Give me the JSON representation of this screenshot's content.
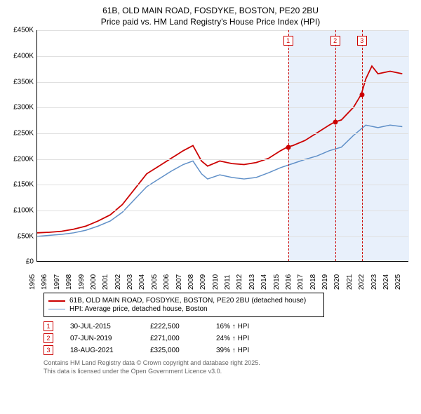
{
  "title_line1": "61B, OLD MAIN ROAD, FOSDYKE, BOSTON, PE20 2BU",
  "title_line2": "Price paid vs. HM Land Registry's House Price Index (HPI)",
  "chart": {
    "type": "line",
    "background_color": "#ffffff",
    "grid_color": "#e0e0e0",
    "shade_color": "#e8f0fb",
    "ylim": [
      0,
      450000
    ],
    "ytick_step": 50000,
    "ytick_labels": [
      "£0",
      "£50K",
      "£100K",
      "£150K",
      "£200K",
      "£250K",
      "£300K",
      "£350K",
      "£400K",
      "£450K"
    ],
    "xlim": [
      1995,
      2025.5
    ],
    "xtick_years": [
      1995,
      1996,
      1997,
      1998,
      1999,
      2000,
      2001,
      2002,
      2003,
      2004,
      2005,
      2006,
      2007,
      2008,
      2009,
      2010,
      2011,
      2012,
      2013,
      2014,
      2015,
      2016,
      2017,
      2018,
      2019,
      2020,
      2021,
      2022,
      2023,
      2024,
      2025
    ],
    "series": [
      {
        "name": "price_paid",
        "color": "#cc0000",
        "line_width": 1.8,
        "data": [
          [
            1995,
            55000
          ],
          [
            1996,
            56000
          ],
          [
            1997,
            58000
          ],
          [
            1998,
            62000
          ],
          [
            1999,
            68000
          ],
          [
            2000,
            78000
          ],
          [
            2001,
            90000
          ],
          [
            2002,
            110000
          ],
          [
            2003,
            140000
          ],
          [
            2004,
            170000
          ],
          [
            2005,
            185000
          ],
          [
            2006,
            200000
          ],
          [
            2007,
            215000
          ],
          [
            2007.8,
            225000
          ],
          [
            2008.5,
            195000
          ],
          [
            2009,
            185000
          ],
          [
            2010,
            195000
          ],
          [
            2011,
            190000
          ],
          [
            2012,
            188000
          ],
          [
            2013,
            192000
          ],
          [
            2014,
            200000
          ],
          [
            2015,
            215000
          ],
          [
            2015.58,
            222500
          ],
          [
            2016,
            225000
          ],
          [
            2017,
            235000
          ],
          [
            2018,
            250000
          ],
          [
            2019,
            265000
          ],
          [
            2019.44,
            271000
          ],
          [
            2020,
            275000
          ],
          [
            2021,
            300000
          ],
          [
            2021.63,
            325000
          ],
          [
            2022,
            355000
          ],
          [
            2022.5,
            380000
          ],
          [
            2023,
            365000
          ],
          [
            2024,
            370000
          ],
          [
            2025,
            365000
          ]
        ]
      },
      {
        "name": "hpi",
        "color": "#6090c8",
        "line_width": 1.5,
        "data": [
          [
            1995,
            48000
          ],
          [
            1996,
            50000
          ],
          [
            1997,
            52000
          ],
          [
            1998,
            55000
          ],
          [
            1999,
            60000
          ],
          [
            2000,
            68000
          ],
          [
            2001,
            78000
          ],
          [
            2002,
            95000
          ],
          [
            2003,
            120000
          ],
          [
            2004,
            145000
          ],
          [
            2005,
            160000
          ],
          [
            2006,
            175000
          ],
          [
            2007,
            188000
          ],
          [
            2007.8,
            195000
          ],
          [
            2008.5,
            170000
          ],
          [
            2009,
            160000
          ],
          [
            2010,
            168000
          ],
          [
            2011,
            163000
          ],
          [
            2012,
            160000
          ],
          [
            2013,
            163000
          ],
          [
            2014,
            172000
          ],
          [
            2015,
            182000
          ],
          [
            2016,
            190000
          ],
          [
            2017,
            198000
          ],
          [
            2018,
            205000
          ],
          [
            2019,
            215000
          ],
          [
            2020,
            222000
          ],
          [
            2021,
            245000
          ],
          [
            2022,
            265000
          ],
          [
            2023,
            260000
          ],
          [
            2024,
            265000
          ],
          [
            2025,
            262000
          ]
        ]
      }
    ],
    "shaded_ranges": [
      [
        2015.58,
        2019.44
      ],
      [
        2019.44,
        2021.63
      ],
      [
        2021.63,
        2025.5
      ]
    ],
    "markers": [
      {
        "x": 2015.58,
        "y": 222500,
        "label": "1"
      },
      {
        "x": 2019.44,
        "y": 271000,
        "label": "2"
      },
      {
        "x": 2021.63,
        "y": 325000,
        "label": "3"
      }
    ],
    "marker_color": "#cc0000",
    "vline_color": "#cc0000"
  },
  "legend": {
    "items": [
      {
        "color": "#cc0000",
        "width": 2,
        "label": "61B, OLD MAIN ROAD, FOSDYKE, BOSTON, PE20 2BU (detached house)"
      },
      {
        "color": "#6090c8",
        "width": 1.5,
        "label": "HPI: Average price, detached house, Boston"
      }
    ]
  },
  "transactions": [
    {
      "id": "1",
      "date": "30-JUL-2015",
      "price": "£222,500",
      "pct": "16% ↑ HPI"
    },
    {
      "id": "2",
      "date": "07-JUN-2019",
      "price": "£271,000",
      "pct": "24% ↑ HPI"
    },
    {
      "id": "3",
      "date": "18-AUG-2021",
      "price": "£325,000",
      "pct": "39% ↑ HPI"
    }
  ],
  "footer_line1": "Contains HM Land Registry data © Crown copyright and database right 2025.",
  "footer_line2": "This data is licensed under the Open Government Licence v3.0."
}
